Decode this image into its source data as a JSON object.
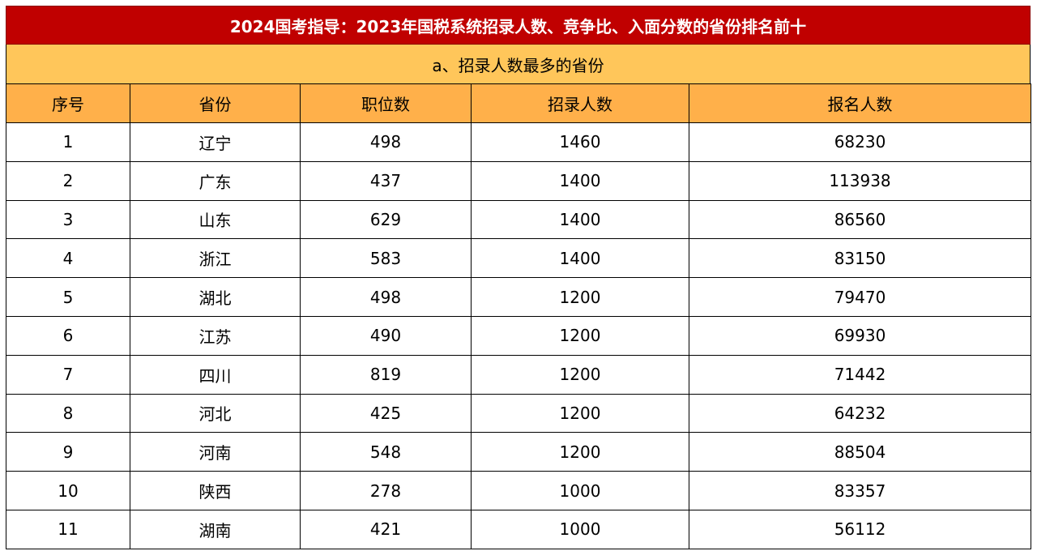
{
  "title": "2024国考指导：2023年国税系统招录人数、竞争比、入面分数的省份排名前十",
  "subtitle": "a、招录人数最多的省份",
  "columns": [
    "序号",
    "省份",
    "职位数",
    "招录人数",
    "报名人数"
  ],
  "rows": [
    {
      "no": "1",
      "province": "辽宁",
      "positions": "498",
      "recruits": "1460",
      "applicants": "68230"
    },
    {
      "no": "2",
      "province": "广东",
      "positions": "437",
      "recruits": "1400",
      "applicants": "113938"
    },
    {
      "no": "3",
      "province": "山东",
      "positions": "629",
      "recruits": "1400",
      "applicants": "86560"
    },
    {
      "no": "4",
      "province": "浙江",
      "positions": "583",
      "recruits": "1400",
      "applicants": "83150"
    },
    {
      "no": "5",
      "province": "湖北",
      "positions": "498",
      "recruits": "1200",
      "applicants": "79470"
    },
    {
      "no": "6",
      "province": "江苏",
      "positions": "490",
      "recruits": "1200",
      "applicants": "69930"
    },
    {
      "no": "7",
      "province": "四川",
      "positions": "819",
      "recruits": "1200",
      "applicants": "71442"
    },
    {
      "no": "8",
      "province": "河北",
      "positions": "425",
      "recruits": "1200",
      "applicants": "64232"
    },
    {
      "no": "9",
      "province": "河南",
      "positions": "548",
      "recruits": "1200",
      "applicants": "88504"
    },
    {
      "no": "10",
      "province": "陕西",
      "positions": "278",
      "recruits": "1000",
      "applicants": "83357"
    },
    {
      "no": "11",
      "province": "湖南",
      "positions": "421",
      "recruits": "1000",
      "applicants": "56112"
    }
  ],
  "colors": {
    "title_bg": "#c00000",
    "subtitle_bg": "#ffc65a",
    "header_bg": "#ffb04a"
  }
}
